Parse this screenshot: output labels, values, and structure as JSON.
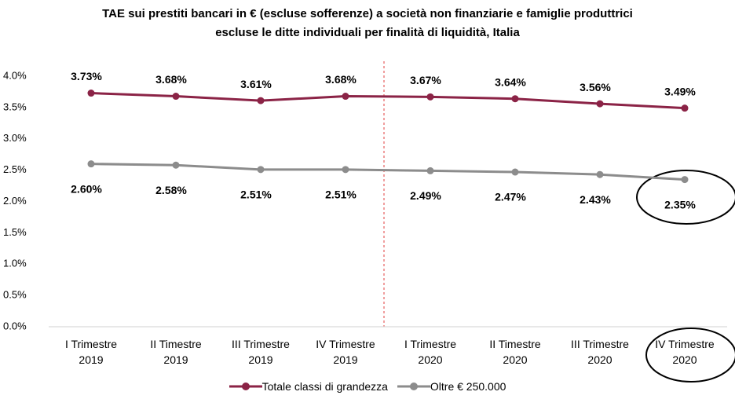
{
  "chart_data": {
    "type": "line",
    "title": "TAE sui prestiti bancari in € (escluse sofferenze) a società non finanziarie e famiglie produttrici escluse le ditte individuali per finalità di liquidità, Italia",
    "categories": [
      "I Trimestre 2019",
      "II Timestre 2019",
      "III Trimestre 2019",
      "IV Trimestre 2019",
      "I Trimestre 2020",
      "II Timestre 2020",
      "III Trimestre 2020",
      "IV Trimestre 2020"
    ],
    "series": [
      {
        "name": "Totale classi di grandezza",
        "color": "#8b2346",
        "values": [
          3.73,
          3.68,
          3.61,
          3.68,
          3.67,
          3.64,
          3.56,
          3.49
        ],
        "value_labels": [
          "3.73%",
          "3.68%",
          "3.61%",
          "3.68%",
          "3.67%",
          "3.64%",
          "3.56%",
          "3.49%"
        ]
      },
      {
        "name": "Oltre € 250.000",
        "color": "#8c8c8c",
        "values": [
          2.6,
          2.58,
          2.51,
          2.51,
          2.49,
          2.47,
          2.43,
          2.35
        ],
        "value_labels": [
          "2.60%",
          "2.58%",
          "2.51%",
          "2.51%",
          "2.49%",
          "2.47%",
          "2.43%",
          "2.35%"
        ]
      }
    ],
    "ylim": [
      0,
      4
    ],
    "yticks": [
      {
        "value": 0,
        "label": "0.0%"
      },
      {
        "value": 0.5,
        "label": "0.5%"
      },
      {
        "value": 1,
        "label": "1.0%"
      },
      {
        "value": 1.5,
        "label": "1.5%"
      },
      {
        "value": 2,
        "label": "2.0%"
      },
      {
        "value": 2.5,
        "label": "2.5%"
      },
      {
        "value": 3,
        "label": "3.0%"
      },
      {
        "value": 3.5,
        "label": "3.5%"
      },
      {
        "value": 4,
        "label": "4.0%"
      }
    ],
    "grid": false,
    "legend": "bottom"
  }
}
